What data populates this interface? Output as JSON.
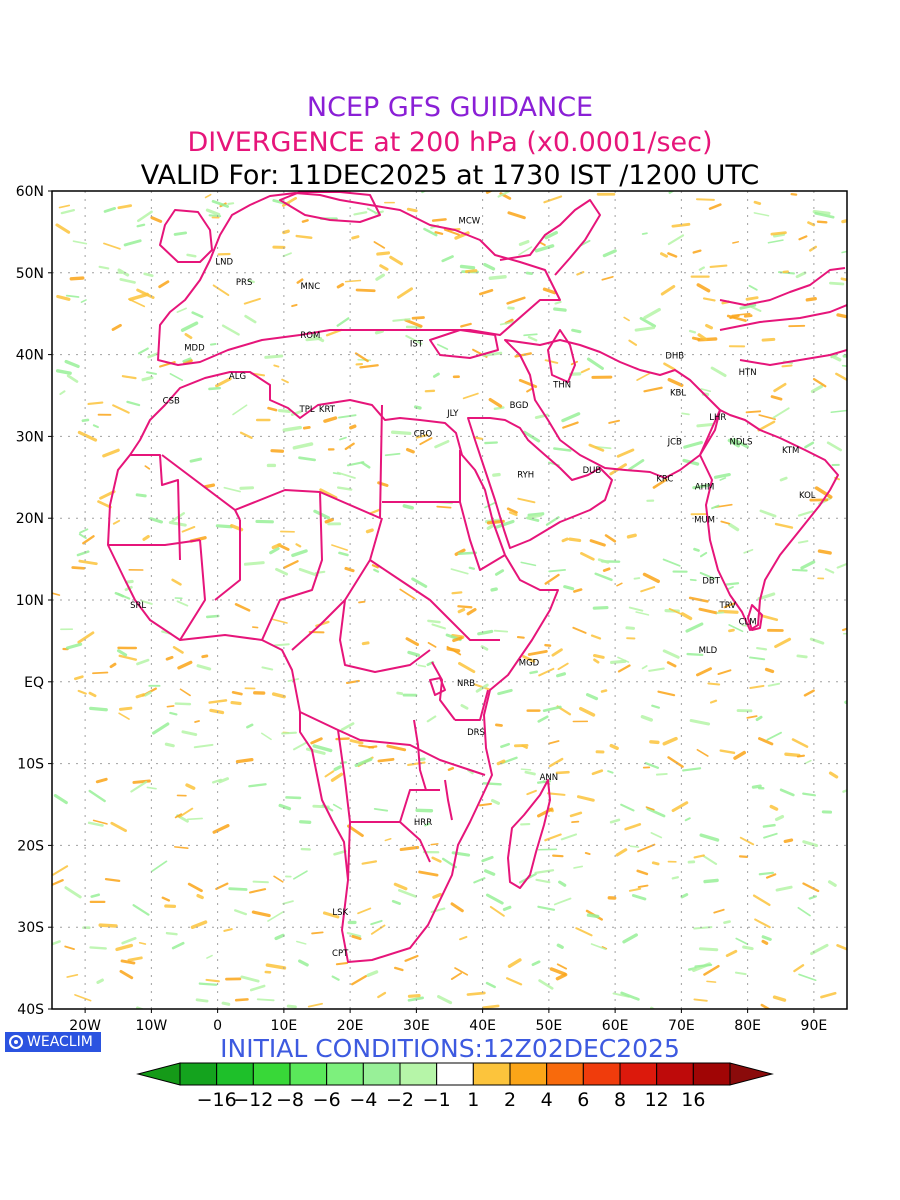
{
  "header": {
    "line1": "NCEP GFS GUIDANCE",
    "line2": "DIVERGENCE at 200 hPa (x0.0001/sec)",
    "line3": "VALID For: 11DEC2025 at 1730 IST /1200 UTC"
  },
  "footer": {
    "initial_conditions": "INITIAL CONDITIONS:12Z02DEC2025",
    "logo_text": "WEACLIM"
  },
  "axes": {
    "lat_labels": [
      {
        "label": "60N",
        "lat": 60
      },
      {
        "label": "50N",
        "lat": 50
      },
      {
        "label": "40N",
        "lat": 40
      },
      {
        "label": "30N",
        "lat": 30
      },
      {
        "label": "20N",
        "lat": 20
      },
      {
        "label": "10N",
        "lat": 10
      },
      {
        "label": "EQ",
        "lat": 0
      },
      {
        "label": "10S",
        "lat": -10
      },
      {
        "label": "20S",
        "lat": -20
      },
      {
        "label": "30S",
        "lat": -30
      },
      {
        "label": "40S",
        "lat": -40
      }
    ],
    "lon_labels": [
      {
        "label": "20W",
        "lon": -20
      },
      {
        "label": "10W",
        "lon": -10
      },
      {
        "label": "0",
        "lon": 0
      },
      {
        "label": "10E",
        "lon": 10
      },
      {
        "label": "20E",
        "lon": 20
      },
      {
        "label": "30E",
        "lon": 30
      },
      {
        "label": "40E",
        "lon": 40
      },
      {
        "label": "50E",
        "lon": 50
      },
      {
        "label": "60E",
        "lon": 60
      },
      {
        "label": "70E",
        "lon": 70
      },
      {
        "label": "80E",
        "lon": 80
      },
      {
        "label": "90E",
        "lon": 90
      }
    ],
    "lon_range": [
      -25,
      95
    ],
    "lat_range": [
      -40,
      60
    ]
  },
  "cities": [
    {
      "code": "MCW",
      "lon": 38,
      "lat": 56
    },
    {
      "code": "LND",
      "lon": 1,
      "lat": 51
    },
    {
      "code": "PRS",
      "lon": 4,
      "lat": 48.5
    },
    {
      "code": "MNC",
      "lon": 14,
      "lat": 48
    },
    {
      "code": "ROM",
      "lon": 14,
      "lat": 42
    },
    {
      "code": "IST",
      "lon": 30,
      "lat": 41
    },
    {
      "code": "MDD",
      "lon": -3.5,
      "lat": 40.5
    },
    {
      "code": "ALG",
      "lon": 3,
      "lat": 37
    },
    {
      "code": "CSB",
      "lon": -7,
      "lat": 34
    },
    {
      "code": "TPL",
      "lon": 13.5,
      "lat": 33
    },
    {
      "code": "KRT",
      "lon": 16.5,
      "lat": 33
    },
    {
      "code": "CRO",
      "lon": 31,
      "lat": 30
    },
    {
      "code": "JLY",
      "lon": 35.5,
      "lat": 32.5
    },
    {
      "code": "BGD",
      "lon": 45.5,
      "lat": 33.5
    },
    {
      "code": "THN",
      "lon": 52,
      "lat": 36
    },
    {
      "code": "DHB",
      "lon": 69,
      "lat": 39.5
    },
    {
      "code": "HTN",
      "lon": 80,
      "lat": 37.5
    },
    {
      "code": "KBL",
      "lon": 69.5,
      "lat": 35
    },
    {
      "code": "LHR",
      "lon": 75.5,
      "lat": 32
    },
    {
      "code": "NDLS",
      "lon": 79,
      "lat": 29
    },
    {
      "code": "KTM",
      "lon": 86.5,
      "lat": 28
    },
    {
      "code": "JCB",
      "lon": 69,
      "lat": 29
    },
    {
      "code": "RYH",
      "lon": 46.5,
      "lat": 25
    },
    {
      "code": "DUB",
      "lon": 56.5,
      "lat": 25.5
    },
    {
      "code": "KRC",
      "lon": 67.5,
      "lat": 24.5
    },
    {
      "code": "AHM",
      "lon": 73.5,
      "lat": 23.5
    },
    {
      "code": "KOL",
      "lon": 89,
      "lat": 22.5
    },
    {
      "code": "MUM",
      "lon": 73.5,
      "lat": 19.5
    },
    {
      "code": "DBT",
      "lon": 74.5,
      "lat": 12
    },
    {
      "code": "TRV",
      "lon": 77,
      "lat": 9
    },
    {
      "code": "CLM",
      "lon": 80,
      "lat": 7
    },
    {
      "code": "MLD",
      "lon": 74,
      "lat": 3.5
    },
    {
      "code": "SRL",
      "lon": -12,
      "lat": 9
    },
    {
      "code": "MGD",
      "lon": 47,
      "lat": 2
    },
    {
      "code": "NRB",
      "lon": 37.5,
      "lat": -0.5
    },
    {
      "code": "DRS",
      "lon": 39,
      "lat": -6.5
    },
    {
      "code": "ANN",
      "lon": 50,
      "lat": -12
    },
    {
      "code": "HRR",
      "lon": 31,
      "lat": -17.5
    },
    {
      "code": "LSK",
      "lon": 18.5,
      "lat": -28.5
    },
    {
      "code": "CPT",
      "lon": 18.5,
      "lat": -33.5
    }
  ],
  "colorbar": {
    "labels": [
      "−16",
      "−12",
      "−8",
      "−6",
      "−4",
      "−2",
      "−1",
      "1",
      "2",
      "4",
      "6",
      "8",
      "12",
      "16"
    ],
    "colors": [
      "#14a31e",
      "#1ec02a",
      "#38d838",
      "#5ae85a",
      "#7df07d",
      "#98f098",
      "#b6f5a8",
      "#ffffff",
      "#fcc43c",
      "#fba518",
      "#f86a0c",
      "#f03c0c",
      "#dc190c",
      "#be0a0a",
      "#a00505"
    ],
    "left_arrow_color": "#159a18",
    "right_arrow_color": "#8a0b0b"
  },
  "colors": {
    "boundary": "#e6157a",
    "positive": "#fba518",
    "negative": "#98f098",
    "grid": "#a0a0a0"
  }
}
